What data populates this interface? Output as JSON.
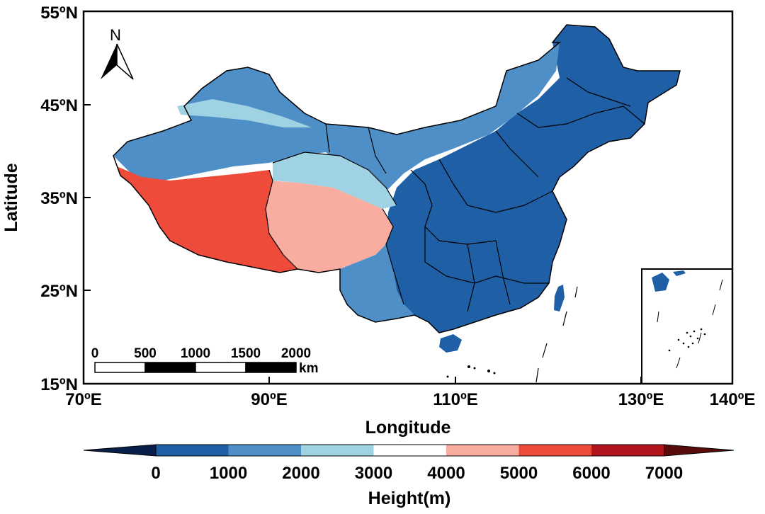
{
  "axes": {
    "xlabel": "Longitude",
    "ylabel": "Latitude",
    "x_ticks": [
      "70ºE",
      "90ºE",
      "110ºE",
      "130ºE",
      "140ºE"
    ],
    "y_ticks": [
      "55ºN",
      "45ºN",
      "35ºN",
      "25ºN",
      "15ºN"
    ]
  },
  "north_arrow": {
    "label": "N"
  },
  "scale_bar": {
    "labels": [
      "0",
      "500",
      "1000",
      "1500",
      "2000"
    ],
    "unit": "km"
  },
  "colorbar": {
    "title": "Height(m)",
    "tick_labels": [
      "0",
      "1000",
      "2000",
      "3000",
      "4000",
      "5000",
      "6000",
      "7000"
    ],
    "colors": [
      "#0a1e4a",
      "#1f5fa6",
      "#4f8fc8",
      "#9fd3e3",
      "#ffffff",
      "#f8ada0",
      "#ee4b3a",
      "#b0151e",
      "#5a0c0c"
    ]
  },
  "map_colors": {
    "low": "#1f5fa6",
    "mid": "#4f8fc8",
    "light": "#9fd3e3",
    "plateau": "#f8ada0",
    "high": "#ee4b3a"
  }
}
